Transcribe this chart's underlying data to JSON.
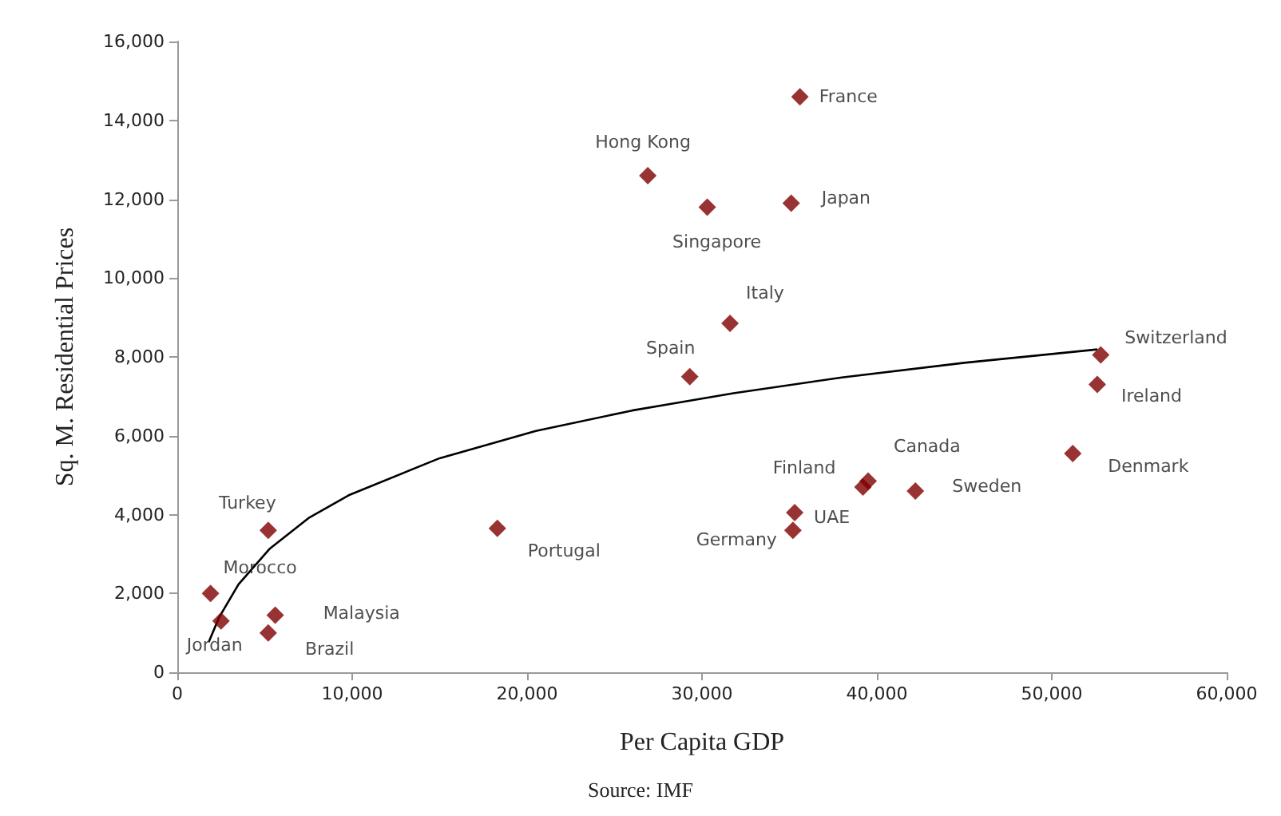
{
  "chart_data": {
    "type": "scatter",
    "xlabel": "Per Capita GDP",
    "ylabel": "Sq. M. Residential Prices",
    "annotations": [
      "Source: IMF"
    ],
    "xlim": [
      0,
      60000
    ],
    "xticks": [
      0,
      {
        "value": 10000,
        "label": "10,000"
      },
      {
        "value": 20000,
        "label": "20,000"
      },
      {
        "value": 30000,
        "label": "30,000"
      },
      {
        "value": 40000,
        "label": "40,000"
      },
      {
        "value": 50000,
        "label": "50,000"
      },
      {
        "value": 60000,
        "label": "60,000"
      }
    ],
    "ylim": [
      0,
      16000
    ],
    "yticks": [
      0,
      {
        "value": 2000,
        "label": "2,000"
      },
      {
        "value": 4000,
        "label": "4,000"
      },
      {
        "value": 6000,
        "label": "6,000"
      },
      {
        "value": 8000,
        "label": "8,000"
      },
      {
        "value": 10000,
        "label": "10,000"
      },
      {
        "value": 12000,
        "label": "12,000"
      },
      {
        "value": 14000,
        "label": "14,000"
      },
      {
        "value": 16000,
        "label": "16,000"
      }
    ],
    "grid": false,
    "legend": false,
    "marker": "diamond",
    "series": [
      {
        "name": "France",
        "color": "#800000",
        "x": [
          35600
        ],
        "values": [
          14600
        ]
      },
      {
        "name": "Hong Kong",
        "color": "#800000",
        "x": [
          26900
        ],
        "values": [
          12600
        ]
      },
      {
        "name": "Singapore",
        "color": "#800000",
        "x": [
          30300
        ],
        "values": [
          11800
        ]
      },
      {
        "name": "Japan",
        "color": "#800000",
        "x": [
          35100
        ],
        "values": [
          11900
        ]
      },
      {
        "name": "Italy",
        "color": "#800000",
        "x": [
          31600
        ],
        "values": [
          8850
        ]
      },
      {
        "name": "Spain",
        "color": "#800000",
        "x": [
          29300
        ],
        "values": [
          7500
        ]
      },
      {
        "name": "Switzerland",
        "color": "#800000",
        "x": [
          52800
        ],
        "values": [
          8050
        ]
      },
      {
        "name": "Ireland",
        "color": "#800000",
        "x": [
          52600
        ],
        "values": [
          7300
        ]
      },
      {
        "name": "Denmark",
        "color": "#800000",
        "x": [
          51200
        ],
        "values": [
          5550
        ]
      },
      {
        "name": "Finland",
        "color": "#800000",
        "x": [
          39200
        ],
        "values": [
          4700
        ]
      },
      {
        "name": "Canada",
        "color": "#800000",
        "x": [
          39500
        ],
        "values": [
          4850
        ]
      },
      {
        "name": "Sweden",
        "color": "#800000",
        "x": [
          42200
        ],
        "values": [
          4600
        ]
      },
      {
        "name": "UAE",
        "color": "#800000",
        "x": [
          35300
        ],
        "values": [
          4050
        ]
      },
      {
        "name": "Germany",
        "color": "#800000",
        "x": [
          35200
        ],
        "values": [
          3600
        ]
      },
      {
        "name": "Portugal",
        "color": "#800000",
        "x": [
          18300
        ],
        "values": [
          3650
        ]
      },
      {
        "name": "Turkey",
        "color": "#800000",
        "x": [
          5200
        ],
        "values": [
          3600
        ]
      },
      {
        "name": "Morocco",
        "color": "#800000",
        "x": [
          1900
        ],
        "values": [
          2000
        ]
      },
      {
        "name": "Jordan",
        "color": "#800000",
        "x": [
          2500
        ],
        "values": [
          1300
        ]
      },
      {
        "name": "Malaysia",
        "color": "#800000",
        "x": [
          5600
        ],
        "values": [
          1450
        ]
      },
      {
        "name": "Brazil",
        "color": "#800000",
        "x": [
          5200
        ],
        "values": [
          1000
        ]
      },
      {
        "type": "line",
        "color": "#000000",
        "marker": "none",
        "x": [
          1800,
          2400,
          3500,
          5300,
          7500,
          9800,
          15000,
          20500,
          26000,
          31800,
          38000,
          45000,
          52600
        ],
        "values": [
          770,
          1400,
          2230,
          3140,
          3910,
          4490,
          5430,
          6120,
          6640,
          7080,
          7480,
          7850,
          8190
        ]
      }
    ]
  }
}
